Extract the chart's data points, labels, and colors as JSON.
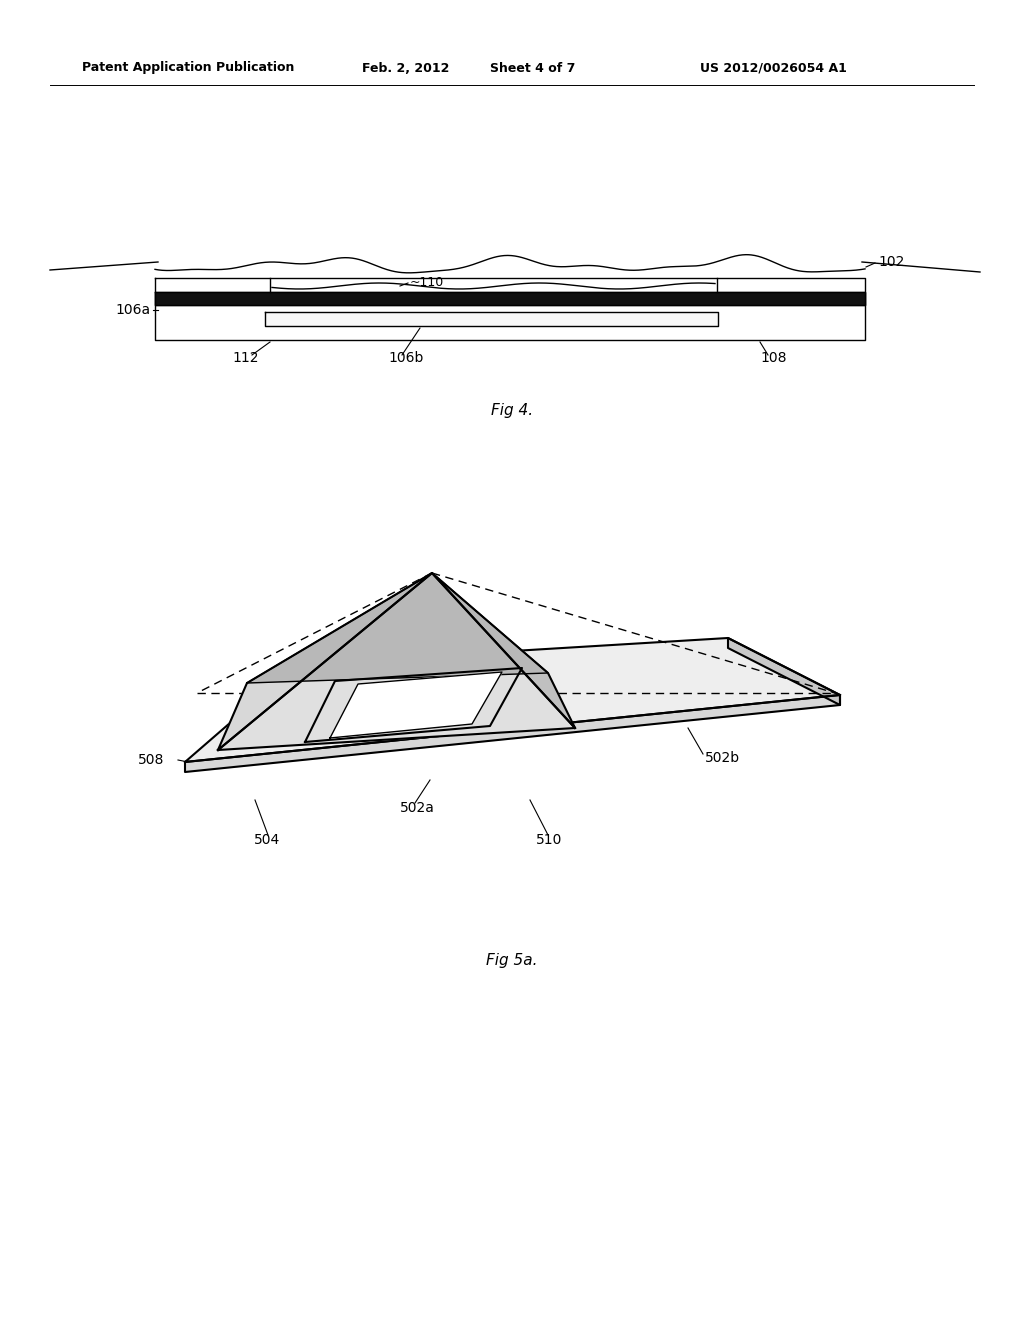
{
  "bg_color": "#ffffff",
  "line_color": "#000000",
  "header_left": "Patent Application Publication",
  "header_mid1": "Feb. 2, 2012",
  "header_mid2": "Sheet 4 of 7",
  "header_right": "US 2012/0026054 A1",
  "fig4_caption": "Fig 4.",
  "fig5a_caption": "Fig 5a.",
  "header_fontsize": 9,
  "caption_fontsize": 11,
  "label_fontsize": 10
}
